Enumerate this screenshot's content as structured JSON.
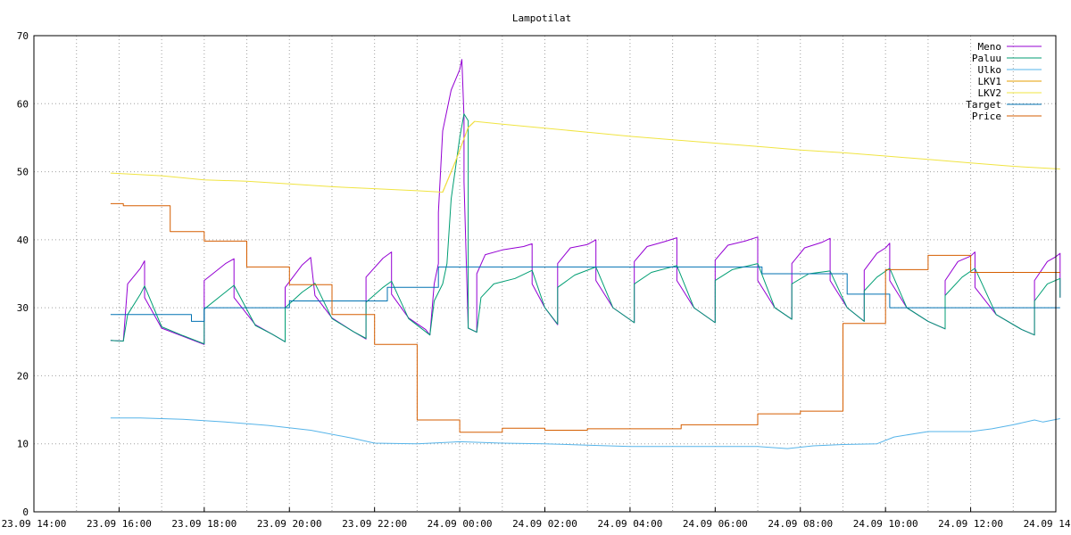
{
  "chart_data": {
    "type": "line",
    "title": "Lampotilat",
    "xlabel": "",
    "ylabel": "",
    "ylim": [
      0,
      70
    ],
    "yticks": [
      0,
      10,
      20,
      30,
      40,
      50,
      60,
      70
    ],
    "xlim": [
      "23.09 14:00",
      "24.09 14:00"
    ],
    "x_unit": "hours since 23.09 00:00",
    "xrange_hours": [
      14,
      38
    ],
    "xticks": [
      {
        "h": 14,
        "label": "23.09 14:00"
      },
      {
        "h": 16,
        "label": "23.09 16:00"
      },
      {
        "h": 18,
        "label": "23.09 18:00"
      },
      {
        "h": 20,
        "label": "23.09 20:00"
      },
      {
        "h": 22,
        "label": "23.09 22:00"
      },
      {
        "h": 24,
        "label": "24.09 00:00"
      },
      {
        "h": 26,
        "label": "24.09 02:00"
      },
      {
        "h": 28,
        "label": "24.09 04:00"
      },
      {
        "h": 30,
        "label": "24.09 06:00"
      },
      {
        "h": 32,
        "label": "24.09 08:00"
      },
      {
        "h": 34,
        "label": "24.09 10:00"
      },
      {
        "h": 36,
        "label": "24.09 12:00"
      },
      {
        "h": 38,
        "label": "24.09 14:00"
      }
    ],
    "grid": true,
    "legend_position": "top-right",
    "series": [
      {
        "name": "Meno",
        "color": "#9400d3",
        "points": [
          [
            15.8,
            25.2
          ],
          [
            16.1,
            25.1
          ],
          [
            16.2,
            33.5
          ],
          [
            16.5,
            35.8
          ],
          [
            16.6,
            36.9
          ],
          [
            16.6,
            31.5
          ],
          [
            17.0,
            27.0
          ],
          [
            17.5,
            25.8
          ],
          [
            18.0,
            24.6
          ],
          [
            18.0,
            34.0
          ],
          [
            18.5,
            36.5
          ],
          [
            18.7,
            37.2
          ],
          [
            18.7,
            31.5
          ],
          [
            19.2,
            27.5
          ],
          [
            19.6,
            26.1
          ],
          [
            19.9,
            25.0
          ],
          [
            19.9,
            33.0
          ],
          [
            20.3,
            36.3
          ],
          [
            20.5,
            37.4
          ],
          [
            20.6,
            31.8
          ],
          [
            21.0,
            28.5
          ],
          [
            21.5,
            26.5
          ],
          [
            21.8,
            25.4
          ],
          [
            21.8,
            34.5
          ],
          [
            22.2,
            37.3
          ],
          [
            22.4,
            38.2
          ],
          [
            22.4,
            32.0
          ],
          [
            22.8,
            28.5
          ],
          [
            23.2,
            26.8
          ],
          [
            23.3,
            26.0
          ],
          [
            23.4,
            33.5
          ],
          [
            23.5,
            36.5
          ],
          [
            23.5,
            44.0
          ],
          [
            23.6,
            56.0
          ],
          [
            23.8,
            62.0
          ],
          [
            24.0,
            65.0
          ],
          [
            24.05,
            66.5
          ],
          [
            24.1,
            58.0
          ],
          [
            24.1,
            48.5
          ],
          [
            24.2,
            27.0
          ],
          [
            24.4,
            26.4
          ],
          [
            24.4,
            35.0
          ],
          [
            24.6,
            37.8
          ],
          [
            25.0,
            38.5
          ],
          [
            25.5,
            39.0
          ],
          [
            25.7,
            39.4
          ],
          [
            25.7,
            33.5
          ],
          [
            26.0,
            30.0
          ],
          [
            26.3,
            27.5
          ],
          [
            26.3,
            36.5
          ],
          [
            26.6,
            38.8
          ],
          [
            27.0,
            39.3
          ],
          [
            27.2,
            40.0
          ],
          [
            27.2,
            34.0
          ],
          [
            27.6,
            30.0
          ],
          [
            28.1,
            27.8
          ],
          [
            28.1,
            36.8
          ],
          [
            28.4,
            39.0
          ],
          [
            28.8,
            39.7
          ],
          [
            29.1,
            40.3
          ],
          [
            29.1,
            34.0
          ],
          [
            29.5,
            30.0
          ],
          [
            30.0,
            27.8
          ],
          [
            30.0,
            37.0
          ],
          [
            30.3,
            39.2
          ],
          [
            30.7,
            39.8
          ],
          [
            31.0,
            40.4
          ],
          [
            31.0,
            34.0
          ],
          [
            31.4,
            30.0
          ],
          [
            31.8,
            28.3
          ],
          [
            31.8,
            36.5
          ],
          [
            32.1,
            38.8
          ],
          [
            32.5,
            39.6
          ],
          [
            32.7,
            40.2
          ],
          [
            32.7,
            34.0
          ],
          [
            33.1,
            30.0
          ],
          [
            33.5,
            28.0
          ],
          [
            33.5,
            35.5
          ],
          [
            33.8,
            38.0
          ],
          [
            34.0,
            38.8
          ],
          [
            34.1,
            39.5
          ],
          [
            34.1,
            34.0
          ],
          [
            34.5,
            30.0
          ],
          [
            35.0,
            28.0
          ],
          [
            35.4,
            26.9
          ],
          [
            35.4,
            34.0
          ],
          [
            35.7,
            36.8
          ],
          [
            36.0,
            37.6
          ],
          [
            36.1,
            38.2
          ],
          [
            36.1,
            33.0
          ],
          [
            36.6,
            29.0
          ],
          [
            37.2,
            26.8
          ],
          [
            37.5,
            26.0
          ],
          [
            37.5,
            34.0
          ],
          [
            37.8,
            36.8
          ],
          [
            38.0,
            37.5
          ],
          [
            38.1,
            38.0
          ],
          [
            38.1,
            31.5
          ]
        ]
      },
      {
        "name": "Paluu",
        "color": "#009e73",
        "points": [
          [
            15.8,
            25.2
          ],
          [
            16.1,
            25.1
          ],
          [
            16.2,
            29.0
          ],
          [
            16.5,
            32.0
          ],
          [
            16.6,
            33.2
          ],
          [
            17.0,
            27.2
          ],
          [
            17.5,
            25.9
          ],
          [
            18.0,
            24.7
          ],
          [
            18.0,
            29.8
          ],
          [
            18.4,
            31.8
          ],
          [
            18.7,
            33.3
          ],
          [
            19.2,
            27.4
          ],
          [
            19.6,
            26.1
          ],
          [
            19.9,
            25.0
          ],
          [
            19.9,
            30.0
          ],
          [
            20.3,
            32.3
          ],
          [
            20.6,
            33.6
          ],
          [
            21.0,
            28.4
          ],
          [
            21.5,
            26.5
          ],
          [
            21.8,
            25.5
          ],
          [
            21.8,
            30.8
          ],
          [
            22.2,
            33.0
          ],
          [
            22.4,
            33.9
          ],
          [
            22.8,
            28.4
          ],
          [
            23.3,
            26.0
          ],
          [
            23.4,
            31.0
          ],
          [
            23.6,
            33.5
          ],
          [
            23.7,
            36.5
          ],
          [
            23.8,
            46.0
          ],
          [
            24.0,
            55.0
          ],
          [
            24.1,
            58.5
          ],
          [
            24.2,
            57.5
          ],
          [
            24.2,
            27.0
          ],
          [
            24.4,
            26.4
          ],
          [
            24.5,
            31.5
          ],
          [
            24.8,
            33.5
          ],
          [
            25.3,
            34.3
          ],
          [
            25.7,
            35.5
          ],
          [
            26.0,
            30.0
          ],
          [
            26.3,
            27.6
          ],
          [
            26.3,
            33.0
          ],
          [
            26.7,
            34.8
          ],
          [
            27.2,
            36.0
          ],
          [
            27.6,
            30.0
          ],
          [
            28.1,
            27.8
          ],
          [
            28.1,
            33.5
          ],
          [
            28.5,
            35.2
          ],
          [
            29.1,
            36.2
          ],
          [
            29.5,
            30.0
          ],
          [
            30.0,
            27.8
          ],
          [
            30.0,
            34.0
          ],
          [
            30.4,
            35.6
          ],
          [
            31.0,
            36.5
          ],
          [
            31.4,
            30.0
          ],
          [
            31.8,
            28.3
          ],
          [
            31.8,
            33.5
          ],
          [
            32.2,
            35.0
          ],
          [
            32.7,
            35.4
          ],
          [
            33.1,
            30.0
          ],
          [
            33.5,
            28.0
          ],
          [
            33.5,
            32.5
          ],
          [
            33.8,
            34.5
          ],
          [
            34.1,
            35.8
          ],
          [
            34.5,
            30.0
          ],
          [
            35.0,
            28.0
          ],
          [
            35.4,
            26.9
          ],
          [
            35.4,
            31.8
          ],
          [
            35.8,
            34.5
          ],
          [
            36.1,
            35.8
          ],
          [
            36.6,
            29.0
          ],
          [
            37.2,
            26.8
          ],
          [
            37.5,
            26.0
          ],
          [
            37.5,
            31.0
          ],
          [
            37.8,
            33.5
          ],
          [
            38.1,
            34.3
          ],
          [
            38.1,
            31.5
          ]
        ]
      },
      {
        "name": "Ulko",
        "color": "#56b4e9",
        "points": [
          [
            15.8,
            13.8
          ],
          [
            16.5,
            13.8
          ],
          [
            17.5,
            13.6
          ],
          [
            18.5,
            13.2
          ],
          [
            19.5,
            12.7
          ],
          [
            20.5,
            12.0
          ],
          [
            21.5,
            10.8
          ],
          [
            22.0,
            10.1
          ],
          [
            23.0,
            10.0
          ],
          [
            24.0,
            10.3
          ],
          [
            25.0,
            10.1
          ],
          [
            26.0,
            10.0
          ],
          [
            27.0,
            9.8
          ],
          [
            28.0,
            9.6
          ],
          [
            29.0,
            9.6
          ],
          [
            30.0,
            9.6
          ],
          [
            31.0,
            9.6
          ],
          [
            31.7,
            9.3
          ],
          [
            32.3,
            9.7
          ],
          [
            33.0,
            9.9
          ],
          [
            33.8,
            10.0
          ],
          [
            34.2,
            11.0
          ],
          [
            35.0,
            11.8
          ],
          [
            36.0,
            11.8
          ],
          [
            36.5,
            12.2
          ],
          [
            37.0,
            12.8
          ],
          [
            37.5,
            13.5
          ],
          [
            37.7,
            13.2
          ],
          [
            38.1,
            13.7
          ]
        ]
      },
      {
        "name": "LKV1",
        "color": "#e69f00",
        "points": [
          [
            23.6,
            47.0
          ],
          [
            23.9,
            51.5
          ],
          [
            24.2,
            56.5
          ],
          [
            24.35,
            57.4
          ]
        ]
      },
      {
        "name": "LKV2",
        "color": "#f0e442",
        "points": [
          [
            15.8,
            49.8
          ],
          [
            17.0,
            49.4
          ],
          [
            18.0,
            48.8
          ],
          [
            19.0,
            48.6
          ],
          [
            20.0,
            48.2
          ],
          [
            21.0,
            47.8
          ],
          [
            22.0,
            47.5
          ],
          [
            23.0,
            47.2
          ],
          [
            23.6,
            47.0
          ],
          [
            23.9,
            51.5
          ],
          [
            24.2,
            56.5
          ],
          [
            24.35,
            57.4
          ],
          [
            25.0,
            57.0
          ],
          [
            26.0,
            56.4
          ],
          [
            27.0,
            55.8
          ],
          [
            28.0,
            55.2
          ],
          [
            29.0,
            54.7
          ],
          [
            30.0,
            54.2
          ],
          [
            31.0,
            53.7
          ],
          [
            32.0,
            53.2
          ],
          [
            33.0,
            52.8
          ],
          [
            34.0,
            52.3
          ],
          [
            35.0,
            51.8
          ],
          [
            36.0,
            51.3
          ],
          [
            37.0,
            50.8
          ],
          [
            38.1,
            50.4
          ]
        ]
      },
      {
        "name": "Target",
        "color": "#0072b2",
        "steps": [
          [
            15.8,
            29.0
          ],
          [
            17.7,
            28.0
          ],
          [
            18.0,
            30.0
          ],
          [
            20.0,
            31.0
          ],
          [
            22.0,
            31.0
          ],
          [
            22.3,
            33.0
          ],
          [
            23.5,
            36.0
          ],
          [
            31.1,
            35.0
          ],
          [
            33.0,
            35.0
          ],
          [
            33.1,
            32.0
          ],
          [
            34.1,
            30.0
          ],
          [
            38.1,
            30.0
          ]
        ]
      },
      {
        "name": "Price",
        "color": "#d55e00",
        "steps": [
          [
            15.8,
            45.3
          ],
          [
            16.1,
            45.0
          ],
          [
            17.2,
            41.2
          ],
          [
            18.0,
            39.8
          ],
          [
            19.0,
            36.0
          ],
          [
            20.0,
            33.4
          ],
          [
            21.0,
            29.0
          ],
          [
            22.0,
            24.6
          ],
          [
            23.0,
            13.5
          ],
          [
            24.0,
            11.7
          ],
          [
            25.0,
            12.3
          ],
          [
            26.0,
            12.0
          ],
          [
            27.0,
            12.2
          ],
          [
            29.2,
            12.8
          ],
          [
            31.0,
            14.4
          ],
          [
            32.0,
            14.8
          ],
          [
            33.0,
            27.7
          ],
          [
            34.0,
            35.6
          ],
          [
            35.0,
            37.7
          ],
          [
            36.0,
            35.2
          ],
          [
            38.1,
            35.2
          ]
        ]
      }
    ]
  }
}
